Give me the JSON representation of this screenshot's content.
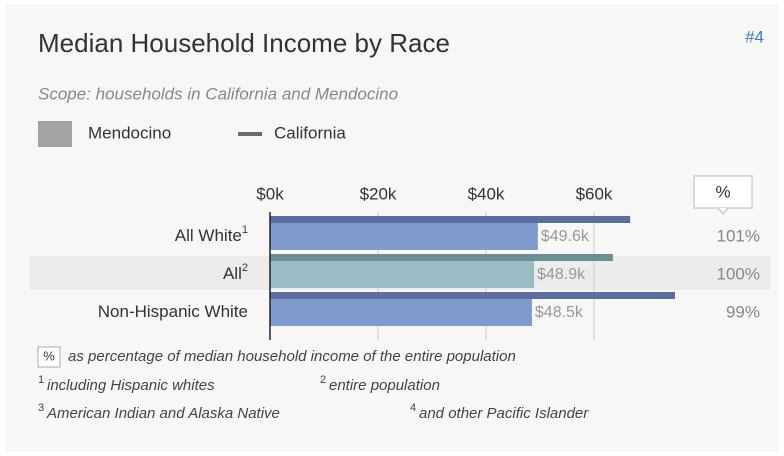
{
  "chart_data": {
    "type": "bar",
    "title": "Median Household Income by Race",
    "chart_id": "#4",
    "subtitle": "Scope: households in California and Mendocino",
    "categories": [
      "All White",
      "All",
      "Non-Hispanic White"
    ],
    "category_notes": [
      "1",
      "2",
      null
    ],
    "highlight_category": "All",
    "series": [
      {
        "name": "Mendocino",
        "legend_color": "#a3a3a3",
        "colors": [
          "#7f9acd",
          "#9cbcc5",
          "#7f9acd"
        ],
        "values": [
          49600,
          48900,
          48500
        ],
        "value_labels": [
          "$49.6k",
          "$48.9k",
          "$48.5k"
        ]
      },
      {
        "name": "California",
        "legend_color": "#6b6b6b",
        "colors": [
          "#5b6e9f",
          "#6b8e95",
          "#5b6e9f"
        ],
        "values": [
          66700,
          63500,
          75000
        ]
      }
    ],
    "xlim": [
      0,
      95000
    ],
    "xticks": [
      {
        "value": 0,
        "label": "$0k"
      },
      {
        "value": 20000,
        "label": "$20k"
      },
      {
        "value": 40000,
        "label": "$40k"
      },
      {
        "value": 60000,
        "label": "$60k"
      }
    ],
    "grid": true,
    "percent_header": "%",
    "percent_labels": [
      "101%",
      "100%",
      "99%"
    ],
    "notes": [
      {
        "mark": "%",
        "text": "as percentage of median household income of the entire population"
      },
      {
        "mark": "1",
        "text": "including Hispanic whites"
      },
      {
        "mark": "2",
        "text": "entire population"
      },
      {
        "mark": "3",
        "text": "American Indian and Alaska Native"
      },
      {
        "mark": "4",
        "text": "and other Pacific Islander"
      }
    ]
  }
}
